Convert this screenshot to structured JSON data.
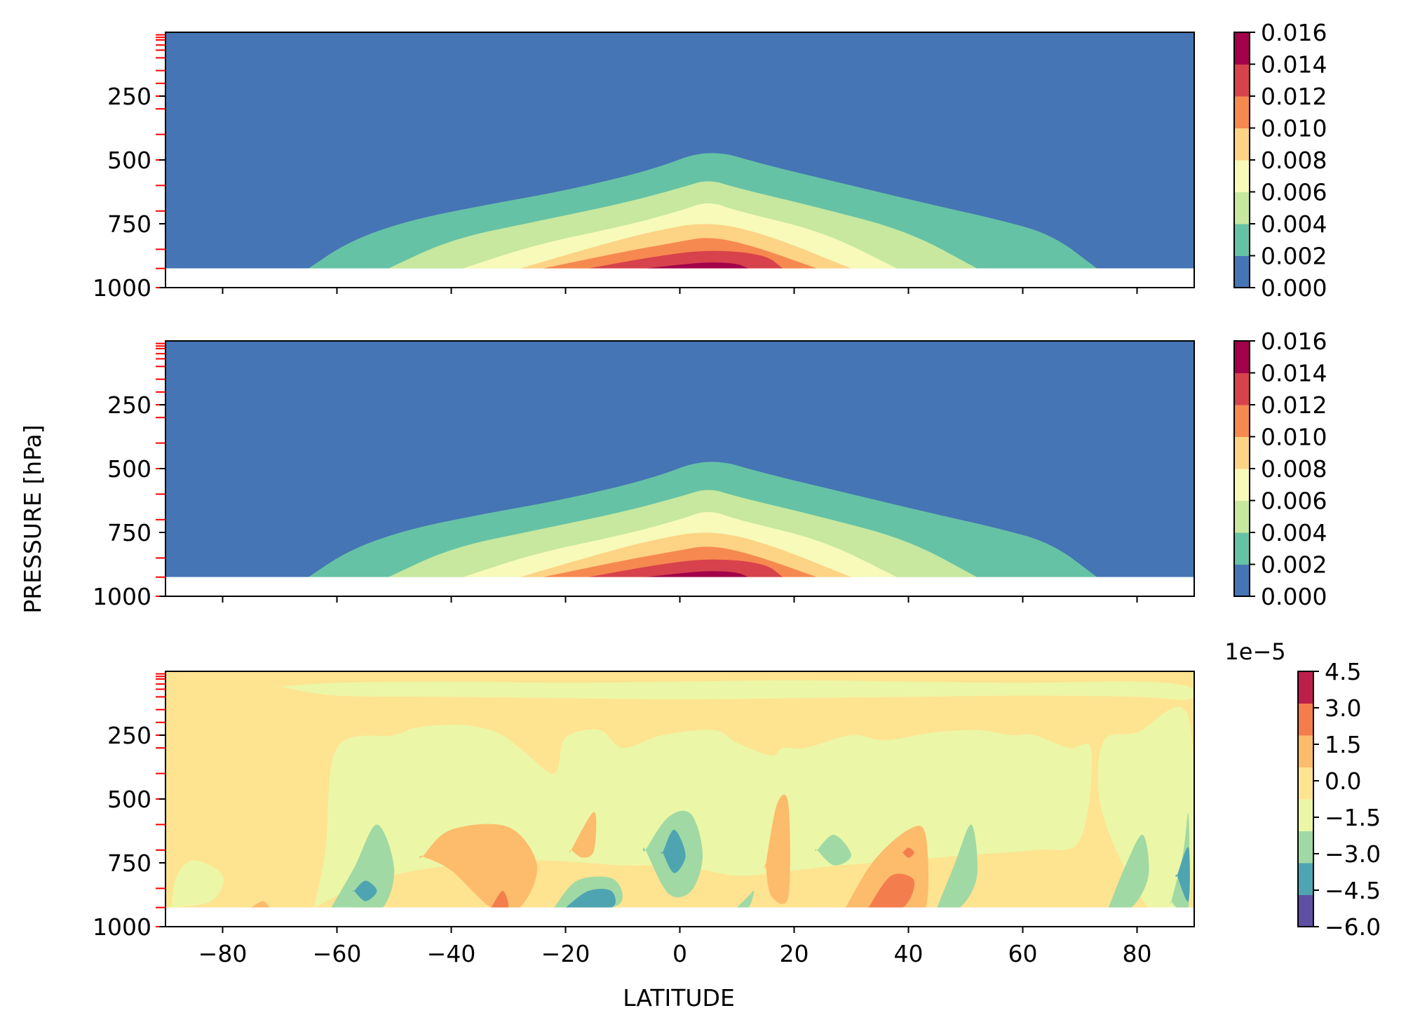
{
  "figure": {
    "ylabel": "PRESSURE [hPa]",
    "xlabel": "LATITUDE"
  },
  "chart_data": [
    {
      "type": "contourf",
      "panel": "top",
      "title": "",
      "xlim": [
        -90,
        90
      ],
      "ylim": [
        1000,
        0
      ],
      "y_ticks": [
        250,
        500,
        750,
        1000
      ],
      "x_ticks": [
        -80,
        -60,
        -40,
        -20,
        0,
        20,
        40,
        60,
        80
      ],
      "x_ticklabels_shown": false,
      "level_marks": [
        10,
        20,
        30,
        50,
        70,
        100,
        150,
        200,
        250,
        300,
        400,
        500,
        600,
        700,
        850,
        925,
        1000
      ],
      "data_region": {
        "pressure_bottom": 925
      },
      "colorbar": {
        "levels": [
          0.0,
          0.002,
          0.004,
          0.006,
          0.008,
          0.01,
          0.012,
          0.014,
          0.016
        ],
        "ticklabels": [
          "0.000",
          "0.002",
          "0.004",
          "0.006",
          "0.008",
          "0.010",
          "0.012",
          "0.014",
          "0.016"
        ],
        "colors": [
          "#4575b4",
          "#66c2a5",
          "#c7e89e",
          "#f7fab8",
          "#fdd385",
          "#f6894f",
          "#d7424c",
          "#a3024a"
        ]
      },
      "contours": [
        {
          "level": 0.002,
          "lat": [
            -65,
            -58,
            -48,
            -35,
            -20,
            -5,
            5,
            15,
            30,
            45,
            55,
            65,
            73
          ],
          "p": [
            925,
            820,
            740,
            680,
            620,
            540,
            455,
            520,
            600,
            680,
            730,
            790,
            925
          ]
        },
        {
          "level": 0.004,
          "lat": [
            -51,
            -40,
            -25,
            -10,
            0,
            5,
            10,
            25,
            40,
            52
          ],
          "p": [
            925,
            810,
            740,
            670,
            610,
            575,
            610,
            690,
            780,
            925
          ]
        },
        {
          "level": 0.006,
          "lat": [
            -38,
            -25,
            -10,
            0,
            5,
            10,
            25,
            38
          ],
          "p": [
            925,
            830,
            760,
            700,
            660,
            700,
            780,
            925
          ]
        },
        {
          "level": 0.008,
          "lat": [
            -28,
            -15,
            -5,
            5,
            15,
            30
          ],
          "p": [
            925,
            840,
            780,
            740,
            790,
            925
          ]
        },
        {
          "level": 0.01,
          "lat": [
            -24,
            -10,
            0,
            5,
            12,
            24
          ],
          "p": [
            925,
            860,
            820,
            800,
            830,
            925
          ]
        },
        {
          "level": 0.012,
          "lat": [
            -16,
            -5,
            5,
            15,
            18
          ],
          "p": [
            925,
            880,
            850,
            870,
            925
          ]
        },
        {
          "level": 0.014,
          "lat": [
            -6,
            0,
            5,
            10,
            12
          ],
          "p": [
            925,
            910,
            900,
            905,
            925
          ]
        }
      ]
    },
    {
      "type": "contourf",
      "panel": "middle",
      "title": "",
      "xlim": [
        -90,
        90
      ],
      "ylim": [
        1000,
        0
      ],
      "y_ticks": [
        250,
        500,
        750,
        1000
      ],
      "x_ticks": [
        -80,
        -60,
        -40,
        -20,
        0,
        20,
        40,
        60,
        80
      ],
      "x_ticklabels_shown": false,
      "level_marks": [
        10,
        20,
        30,
        50,
        70,
        100,
        150,
        200,
        250,
        300,
        400,
        500,
        600,
        700,
        850,
        925,
        1000
      ],
      "data_region": {
        "pressure_bottom": 925
      },
      "colorbar": {
        "levels": [
          0.0,
          0.002,
          0.004,
          0.006,
          0.008,
          0.01,
          0.012,
          0.014,
          0.016
        ],
        "ticklabels": [
          "0.000",
          "0.002",
          "0.004",
          "0.006",
          "0.008",
          "0.010",
          "0.012",
          "0.014",
          "0.016"
        ],
        "colors": [
          "#4575b4",
          "#66c2a5",
          "#c7e89e",
          "#f7fab8",
          "#fdd385",
          "#f6894f",
          "#d7424c",
          "#a3024a"
        ]
      },
      "contours": [
        {
          "level": 0.002,
          "lat": [
            -65,
            -58,
            -48,
            -35,
            -20,
            -5,
            5,
            15,
            30,
            45,
            55,
            65,
            73
          ],
          "p": [
            925,
            820,
            740,
            680,
            620,
            540,
            455,
            520,
            600,
            680,
            730,
            790,
            925
          ]
        },
        {
          "level": 0.004,
          "lat": [
            -51,
            -40,
            -25,
            -10,
            0,
            5,
            10,
            25,
            40,
            52
          ],
          "p": [
            925,
            810,
            740,
            670,
            610,
            575,
            610,
            690,
            780,
            925
          ]
        },
        {
          "level": 0.006,
          "lat": [
            -38,
            -25,
            -10,
            0,
            5,
            10,
            25,
            38
          ],
          "p": [
            925,
            830,
            760,
            700,
            660,
            700,
            780,
            925
          ]
        },
        {
          "level": 0.008,
          "lat": [
            -28,
            -15,
            -5,
            5,
            15,
            30
          ],
          "p": [
            925,
            840,
            780,
            740,
            790,
            925
          ]
        },
        {
          "level": 0.01,
          "lat": [
            -24,
            -10,
            0,
            5,
            12,
            24
          ],
          "p": [
            925,
            860,
            820,
            800,
            830,
            925
          ]
        },
        {
          "level": 0.012,
          "lat": [
            -16,
            -5,
            5,
            15,
            18
          ],
          "p": [
            925,
            880,
            850,
            870,
            925
          ]
        },
        {
          "level": 0.014,
          "lat": [
            -6,
            0,
            5,
            10,
            12
          ],
          "p": [
            925,
            910,
            900,
            905,
            925
          ]
        }
      ]
    },
    {
      "type": "contourf",
      "panel": "bottom",
      "title": "",
      "xlim": [
        -90,
        90
      ],
      "ylim": [
        1000,
        0
      ],
      "y_ticks": [
        250,
        500,
        750,
        1000
      ],
      "x_ticks": [
        -80,
        -60,
        -40,
        -20,
        0,
        20,
        40,
        60,
        80
      ],
      "x_ticklabels": [
        "−80",
        "−60",
        "−40",
        "−20",
        "0",
        "20",
        "40",
        "60",
        "80"
      ],
      "x_ticklabels_shown": true,
      "level_marks": [
        10,
        20,
        30,
        50,
        70,
        100,
        150,
        200,
        250,
        300,
        400,
        500,
        600,
        700,
        850,
        925,
        1000
      ],
      "data_region": {
        "pressure_bottom": 925
      },
      "colorbar": {
        "offset_label": "1e−5",
        "levels": [
          -6.0,
          -4.5,
          -3.0,
          -1.5,
          0.0,
          1.5,
          3.0,
          4.5
        ],
        "ticklabels": [
          "−6.0",
          "−4.5",
          "−3.0",
          "−1.5",
          "0.0",
          "1.5",
          "3.0",
          "4.5"
        ],
        "colors": [
          "#5e4fa2",
          "#4ea5b1",
          "#a1d9a4",
          "#ebf7a7",
          "#fee391",
          "#fdbb6c",
          "#f47d4d",
          "#be1e4a"
        ],
        "scale": 1e-05
      },
      "background_value": 0.75,
      "blobs": [
        {
          "value": -0.75,
          "lat": [
            -89,
            -88,
            -85,
            -80,
            -82,
            -89
          ],
          "p": [
            925,
            800,
            740,
            800,
            900,
            925
          ]
        },
        {
          "value": -0.75,
          "lat": [
            -64,
            -62,
            -60,
            -50,
            -46,
            -38,
            -32,
            -28,
            -22,
            -20,
            -14,
            -10,
            -3,
            6,
            10,
            16,
            18,
            22,
            30,
            36,
            44,
            52,
            58,
            62,
            68,
            72,
            70,
            62,
            50,
            40,
            28,
            20,
            10,
            0,
            -10,
            -25,
            -40,
            -54,
            -64
          ],
          "p": [
            925,
            700,
            300,
            250,
            220,
            210,
            240,
            300,
            400,
            260,
            230,
            300,
            250,
            230,
            280,
            330,
            300,
            300,
            250,
            270,
            240,
            230,
            250,
            250,
            300,
            310,
            660,
            700,
            720,
            740,
            760,
            780,
            800,
            760,
            760,
            740,
            760,
            820,
            925
          ]
        },
        {
          "value": -0.75,
          "lat": [
            -70,
            -60,
            -40,
            -20,
            0,
            20,
            40,
            60,
            80,
            89,
            89,
            80,
            60,
            40,
            20,
            0,
            -20,
            -40,
            -60,
            -70
          ],
          "p": [
            60,
            45,
            40,
            45,
            40,
            35,
            40,
            45,
            40,
            60,
            110,
            100,
            95,
            100,
            105,
            110,
            105,
            100,
            95,
            60
          ]
        },
        {
          "value": -0.75,
          "lat": [
            74,
            80,
            89,
            89,
            82,
            74
          ],
          "p": [
            280,
            240,
            180,
            925,
            925,
            560
          ]
        },
        {
          "value": -2.25,
          "lat": [
            -61,
            -57,
            -53,
            -50,
            -52,
            -57,
            -61
          ],
          "p": [
            925,
            770,
            600,
            770,
            925,
            925,
            925
          ]
        },
        {
          "value": -2.25,
          "lat": [
            -6,
            -2,
            2,
            4,
            2,
            -2,
            -6
          ],
          "p": [
            700,
            570,
            560,
            720,
            860,
            870,
            700
          ]
        },
        {
          "value": -2.25,
          "lat": [
            -22,
            -18,
            -12,
            -10,
            -12,
            -20,
            -22
          ],
          "p": [
            925,
            820,
            810,
            880,
            925,
            925,
            925
          ]
        },
        {
          "value": -2.25,
          "lat": [
            10,
            12,
            13,
            12,
            10
          ],
          "p": [
            925,
            880,
            860,
            925,
            925
          ]
        },
        {
          "value": -2.25,
          "lat": [
            45,
            48,
            51,
            52,
            49,
            45
          ],
          "p": [
            925,
            760,
            600,
            800,
            925,
            925
          ]
        },
        {
          "value": -2.25,
          "lat": [
            75,
            78,
            81,
            82,
            79,
            75
          ],
          "p": [
            925,
            760,
            640,
            800,
            925,
            925
          ]
        },
        {
          "value": -2.25,
          "lat": [
            86,
            88,
            89,
            89,
            87,
            86
          ],
          "p": [
            900,
            720,
            560,
            925,
            925,
            900
          ]
        },
        {
          "value": -2.25,
          "lat": [
            24,
            27,
            30,
            27,
            24
          ],
          "p": [
            700,
            640,
            720,
            760,
            700
          ]
        },
        {
          "value": -3.75,
          "lat": [
            -20,
            -16,
            -12,
            -12,
            -20,
            -20
          ],
          "p": [
            925,
            860,
            860,
            925,
            925,
            925
          ]
        },
        {
          "value": -3.75,
          "lat": [
            -3,
            -1,
            1,
            -1,
            -3
          ],
          "p": [
            710,
            620,
            720,
            790,
            710
          ]
        },
        {
          "value": -3.75,
          "lat": [
            -57,
            -55,
            -53,
            -55,
            -57
          ],
          "p": [
            860,
            820,
            860,
            900,
            860
          ]
        },
        {
          "value": -3.75,
          "lat": [
            87,
            89,
            89,
            87
          ],
          "p": [
            800,
            690,
            900,
            800
          ]
        },
        {
          "value": 2.25,
          "lat": [
            -45,
            -40,
            -30,
            -25,
            -28,
            -33,
            -40,
            -45
          ],
          "p": [
            725,
            620,
            610,
            760,
            925,
            925,
            780,
            725
          ]
        },
        {
          "value": 2.25,
          "lat": [
            -19,
            -15,
            -15,
            -17,
            -19
          ],
          "p": [
            700,
            550,
            700,
            730,
            700
          ]
        },
        {
          "value": 2.25,
          "lat": [
            15,
            17,
            19,
            19,
            16,
            15
          ],
          "p": [
            760,
            520,
            520,
            880,
            880,
            760
          ]
        },
        {
          "value": 2.25,
          "lat": [
            29,
            34,
            40,
            43,
            43,
            38,
            34,
            29
          ],
          "p": [
            925,
            740,
            620,
            640,
            925,
            925,
            925,
            925
          ]
        },
        {
          "value": 2.25,
          "lat": [
            -75,
            -73,
            -72,
            -75
          ],
          "p": [
            925,
            900,
            925,
            925
          ]
        },
        {
          "value": 3.75,
          "lat": [
            -33,
            -31,
            -30,
            -32,
            -33
          ],
          "p": [
            925,
            860,
            925,
            925,
            925
          ]
        },
        {
          "value": 3.75,
          "lat": [
            33,
            37,
            41,
            39,
            33
          ],
          "p": [
            925,
            800,
            820,
            925,
            925
          ]
        },
        {
          "value": 3.75,
          "lat": [
            39,
            40,
            41,
            40,
            39
          ],
          "p": [
            710,
            690,
            710,
            730,
            710
          ]
        }
      ]
    }
  ]
}
